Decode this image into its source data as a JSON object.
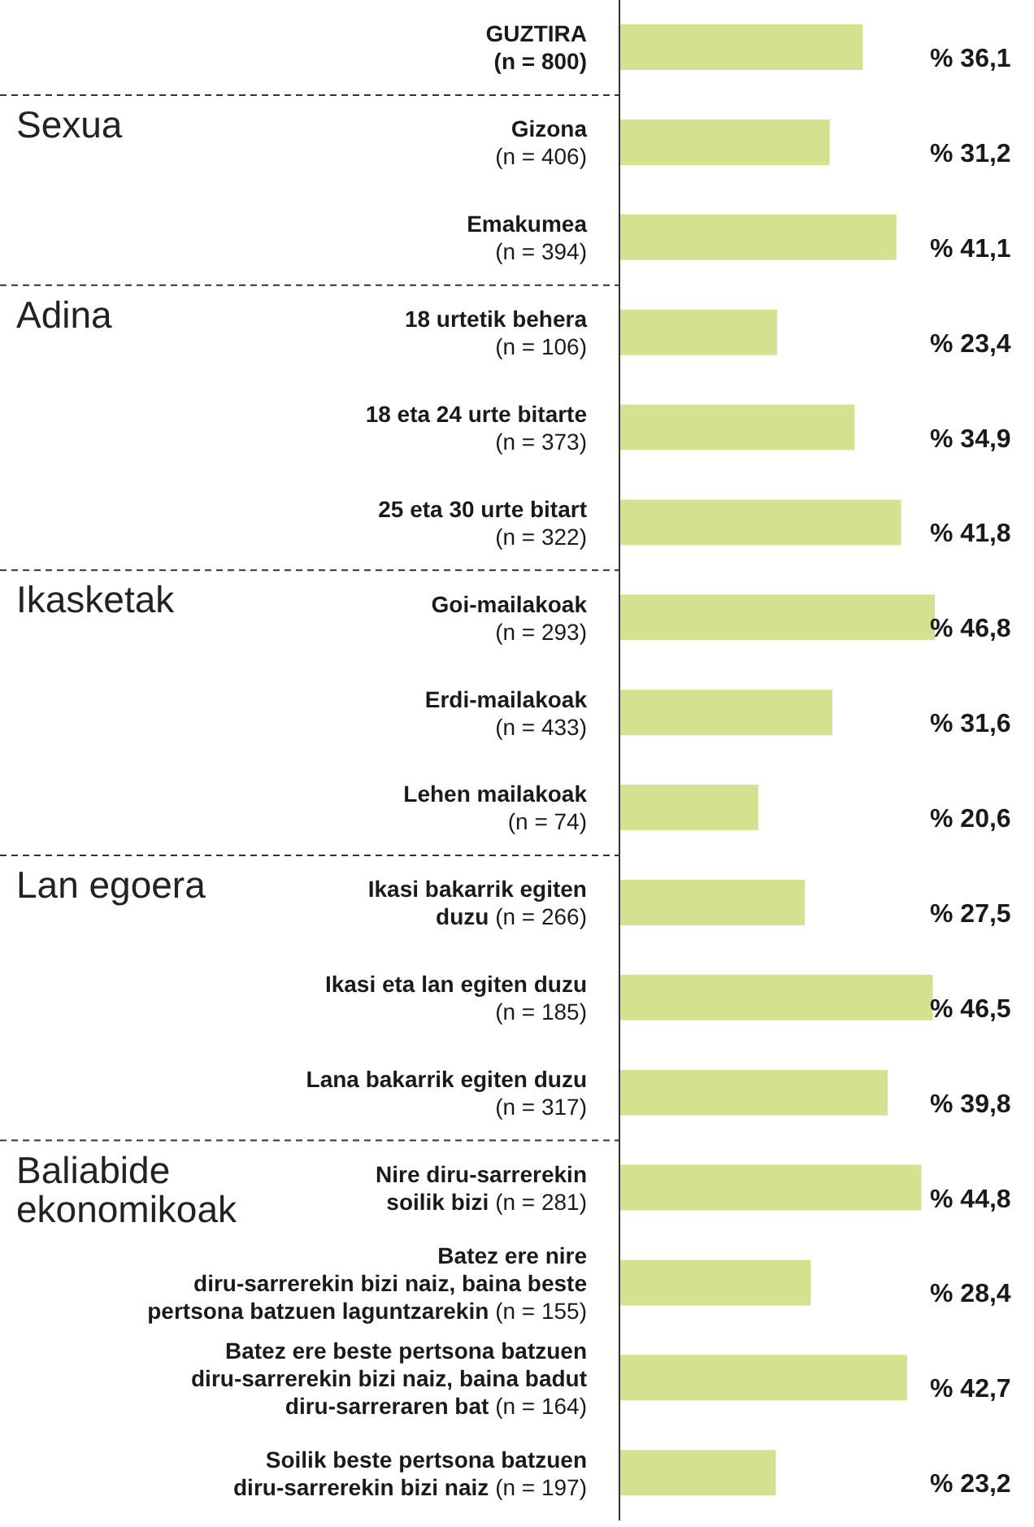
{
  "chart_data": {
    "type": "bar",
    "orientation": "horizontal",
    "color": "#d3e28f",
    "categories": [
      "GUZTIRA\n(n = 800)",
      "Gizona\n(n = 406)",
      "Emakumea\n(n = 394)",
      "18 urtetik behera\n(n = 106)",
      "18 eta 24 urte bitarte\n(n = 373)",
      "25 eta 30 urte bitart\n(n = 322)",
      "Goi-mailakoak\n(n = 293)",
      "Erdi-mailakoak\n(n = 433)",
      "Lehen mailakoak\n(n = 74)",
      "Ikasi bakarrik egiten\nduzu (n = 266)",
      "Ikasi eta lan egiten duzu\n(n = 185)",
      "Lana bakarrik egiten duzu\n(n = 317)",
      "Nire diru-sarrerekin\nsoilik bizi (n = 281)",
      "Batez ere nire\ndiru-sarrerekin bizi naiz, baina beste\npertsona batzuen laguntzarekin (n = 155)",
      "Batez ere beste pertsona batzuen\ndiru-sarrerekin bizi naiz, baina badut\ndiru-sarreraren bat (n = 164)",
      "Soilik beste pertsona batzuen\ndiru-sarrerekin bizi naiz (n = 197)"
    ],
    "values": [
      36.1,
      31.2,
      41.1,
      23.4,
      34.9,
      41.8,
      46.8,
      31.6,
      20.6,
      27.5,
      46.5,
      39.8,
      44.8,
      28.4,
      42.7,
      23.2
    ],
    "value_labels": [
      "% 36,1",
      "% 31,2",
      "% 41,1",
      "% 23,4",
      "% 34,9",
      "% 41,8",
      "% 46,8",
      "% 31,6",
      "% 20,6",
      "% 27,5",
      "% 46,5",
      "% 39,8",
      "% 44,8",
      "% 28,4",
      "% 42,7",
      "% 23,2"
    ],
    "annotations": [
      "Sexua",
      "Adina",
      "Ikasketak",
      "Lan egoera",
      "Baliabide\nekonomikoak"
    ]
  }
}
